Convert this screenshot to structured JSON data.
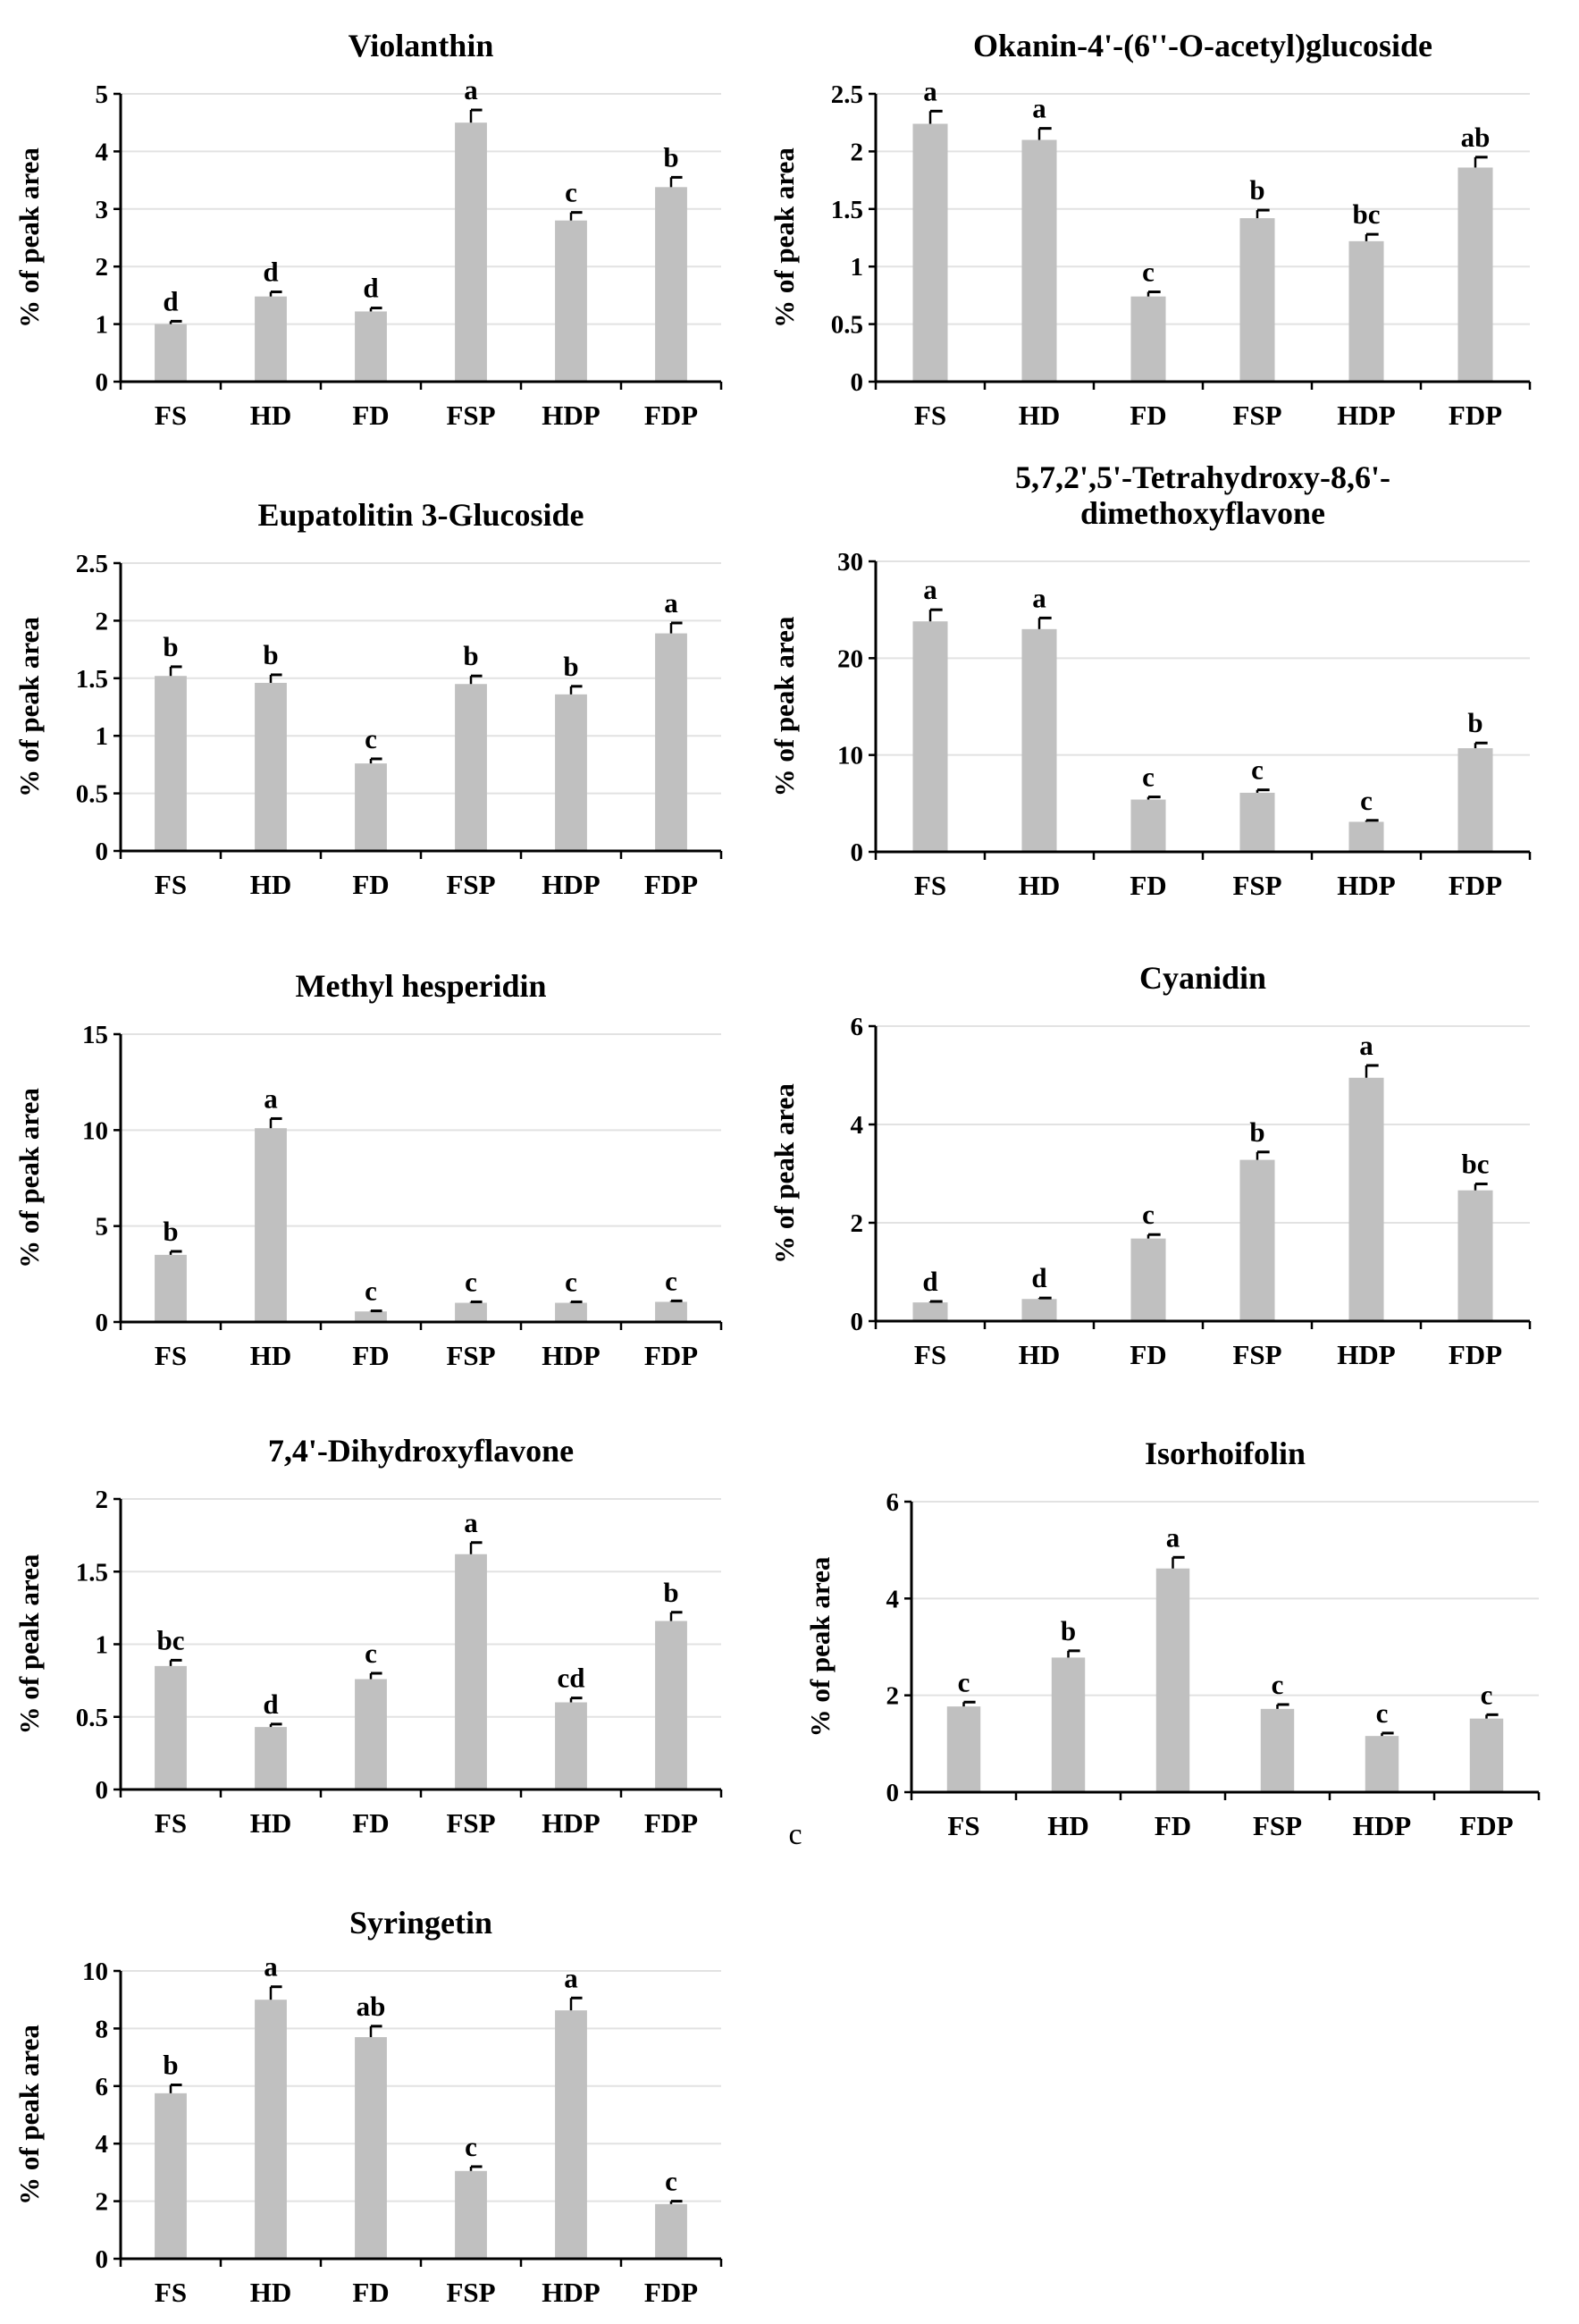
{
  "figure": {
    "stray_label": "c"
  },
  "chart_data": [
    {
      "type": "bar",
      "title": [
        "Violanthin"
      ],
      "ylabel": "% of peak area",
      "categories": [
        "FS",
        "HD",
        "FD",
        "FSP",
        "HDP",
        "FDP"
      ],
      "values": [
        1.0,
        1.48,
        1.22,
        4.5,
        2.8,
        3.38
      ],
      "errors": [
        0.05,
        0.08,
        0.06,
        0.22,
        0.14,
        0.17
      ],
      "letters": [
        "d",
        "d",
        "d",
        "a",
        "c",
        "b"
      ],
      "yticks": [
        0,
        1,
        2,
        3,
        4,
        5
      ],
      "ytick_labels": [
        "0",
        "1",
        "2",
        "3",
        "4",
        "5"
      ],
      "ylim": [
        0,
        5
      ],
      "color": "#c0c0c0",
      "grid": true
    },
    {
      "type": "bar",
      "title": [
        "Okanin-4'-(6''-O-acetyl)glucoside"
      ],
      "ylabel": "% of peak area",
      "categories": [
        "FS",
        "HD",
        "FD",
        "FSP",
        "HDP",
        "FDP"
      ],
      "values": [
        2.24,
        2.1,
        0.74,
        1.42,
        1.22,
        1.86
      ],
      "errors": [
        0.11,
        0.1,
        0.04,
        0.07,
        0.06,
        0.09
      ],
      "letters": [
        "a",
        "a",
        "c",
        "b",
        "bc",
        "ab"
      ],
      "yticks": [
        0,
        0.5,
        1,
        1.5,
        2,
        2.5
      ],
      "ytick_labels": [
        "0",
        "0.5",
        "1",
        "1.5",
        "2",
        "2.5"
      ],
      "ylim": [
        0,
        2.5
      ],
      "color": "#c0c0c0",
      "grid": true
    },
    {
      "type": "bar",
      "title": [
        "Eupatolitin 3-Glucoside"
      ],
      "ylabel": "% of peak area",
      "categories": [
        "FS",
        "HD",
        "FD",
        "FSP",
        "HDP",
        "FDP"
      ],
      "values": [
        1.52,
        1.46,
        0.76,
        1.45,
        1.36,
        1.89
      ],
      "errors": [
        0.08,
        0.07,
        0.04,
        0.07,
        0.07,
        0.09
      ],
      "letters": [
        "b",
        "b",
        "c",
        "b",
        "b",
        "a"
      ],
      "yticks": [
        0,
        0.5,
        1,
        1.5,
        2,
        2.5
      ],
      "ytick_labels": [
        "0",
        "0.5",
        "1",
        "1.5",
        "2",
        "2.5"
      ],
      "ylim": [
        0,
        2.5
      ],
      "color": "#c0c0c0",
      "grid": true
    },
    {
      "type": "bar",
      "title": [
        "5,7,2',5'-Tetrahydroxy-8,6'-",
        "dimethoxyflavone"
      ],
      "ylabel": "% of peak area",
      "categories": [
        "FS",
        "HD",
        "FD",
        "FSP",
        "HDP",
        "FDP"
      ],
      "values": [
        23.8,
        23.0,
        5.4,
        6.1,
        3.1,
        10.7
      ],
      "errors": [
        1.2,
        1.15,
        0.27,
        0.3,
        0.15,
        0.54
      ],
      "letters": [
        "a",
        "a",
        "c",
        "c",
        "c",
        "b"
      ],
      "yticks": [
        0,
        10,
        20,
        30
      ],
      "ytick_labels": [
        "0",
        "10",
        "20",
        "30"
      ],
      "ylim": [
        0,
        30
      ],
      "color": "#c0c0c0",
      "grid": true
    },
    {
      "type": "bar",
      "title": [
        "Methyl hesperidin"
      ],
      "ylabel": "% of peak area",
      "categories": [
        "FS",
        "HD",
        "FD",
        "FSP",
        "HDP",
        "FDP"
      ],
      "values": [
        3.5,
        10.1,
        0.55,
        1.0,
        1.0,
        1.05
      ],
      "errors": [
        0.18,
        0.5,
        0.03,
        0.05,
        0.05,
        0.05
      ],
      "letters": [
        "b",
        "a",
        "c",
        "c",
        "c",
        "c"
      ],
      "yticks": [
        0,
        5,
        10,
        15
      ],
      "ytick_labels": [
        "0",
        "5",
        "10",
        "15"
      ],
      "ylim": [
        0,
        15
      ],
      "color": "#c0c0c0",
      "grid": true
    },
    {
      "type": "bar",
      "title": [
        "Cyanidin"
      ],
      "ylabel": "% of peak area",
      "categories": [
        "FS",
        "HD",
        "FD",
        "FSP",
        "HDP",
        "FDP"
      ],
      "values": [
        0.38,
        0.45,
        1.68,
        3.28,
        4.95,
        2.66
      ],
      "errors": [
        0.02,
        0.02,
        0.08,
        0.16,
        0.25,
        0.13
      ],
      "letters": [
        "d",
        "d",
        "c",
        "b",
        "a",
        "bc"
      ],
      "yticks": [
        0,
        2,
        4,
        6
      ],
      "ytick_labels": [
        "0",
        "2",
        "4",
        "6"
      ],
      "ylim": [
        0,
        6
      ],
      "color": "#c0c0c0",
      "grid": true
    },
    {
      "type": "bar",
      "title": [
        "7,4'-Dihydroxyflavone"
      ],
      "ylabel": "% of peak area",
      "categories": [
        "FS",
        "HD",
        "FD",
        "FSP",
        "HDP",
        "FDP"
      ],
      "values": [
        0.85,
        0.43,
        0.76,
        1.62,
        0.6,
        1.16
      ],
      "errors": [
        0.04,
        0.02,
        0.04,
        0.08,
        0.03,
        0.06
      ],
      "letters": [
        "bc",
        "d",
        "c",
        "a",
        "cd",
        "b"
      ],
      "yticks": [
        0,
        0.5,
        1,
        1.5,
        2
      ],
      "ytick_labels": [
        "0",
        "0.5",
        "1",
        "1.5",
        "2"
      ],
      "ylim": [
        0,
        2
      ],
      "color": "#c0c0c0",
      "grid": true
    },
    {
      "type": "bar",
      "title": [
        "Isorhoifolin"
      ],
      "ylabel": "% of peak area",
      "categories": [
        "FS",
        "HD",
        "FD",
        "FSP",
        "HDP",
        "FDP"
      ],
      "values": [
        1.77,
        2.78,
        4.62,
        1.72,
        1.16,
        1.52
      ],
      "errors": [
        0.09,
        0.14,
        0.23,
        0.09,
        0.06,
        0.08
      ],
      "letters": [
        "c",
        "b",
        "a",
        "c",
        "c",
        "c"
      ],
      "yticks": [
        0,
        2,
        4,
        6
      ],
      "ytick_labels": [
        "0",
        "2",
        "4",
        "6"
      ],
      "ylim": [
        0,
        6
      ],
      "color": "#c0c0c0",
      "grid": true
    },
    {
      "type": "bar",
      "title": [
        "Syringetin"
      ],
      "ylabel": "% of peak area",
      "categories": [
        "FS",
        "HD",
        "FD",
        "FSP",
        "HDP",
        "FDP"
      ],
      "values": [
        5.75,
        9.0,
        7.7,
        3.05,
        8.63,
        1.9
      ],
      "errors": [
        0.29,
        0.45,
        0.38,
        0.15,
        0.43,
        0.1
      ],
      "letters": [
        "b",
        "a",
        "ab",
        "c",
        "a",
        "c"
      ],
      "yticks": [
        0,
        2,
        4,
        6,
        8,
        10
      ],
      "ytick_labels": [
        "0",
        "2",
        "4",
        "6",
        "8",
        "10"
      ],
      "ylim": [
        0,
        10
      ],
      "color": "#c0c0c0",
      "grid": true
    }
  ]
}
